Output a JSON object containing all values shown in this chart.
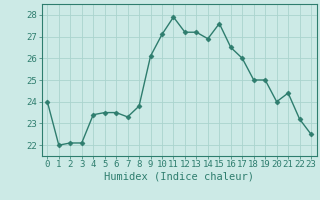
{
  "x": [
    0,
    1,
    2,
    3,
    4,
    5,
    6,
    7,
    8,
    9,
    10,
    11,
    12,
    13,
    14,
    15,
    16,
    17,
    18,
    19,
    20,
    21,
    22,
    23
  ],
  "y": [
    24.0,
    22.0,
    22.1,
    22.1,
    23.4,
    23.5,
    23.5,
    23.3,
    23.8,
    26.1,
    27.1,
    27.9,
    27.2,
    27.2,
    26.9,
    27.6,
    26.5,
    26.0,
    25.0,
    25.0,
    24.0,
    24.4,
    23.2,
    22.5
  ],
  "line_color": "#2e7d6e",
  "marker": "D",
  "marker_size": 2.5,
  "bg_color": "#cceae6",
  "grid_color": "#aad4ce",
  "xlabel": "Humidex (Indice chaleur)",
  "ylim": [
    21.5,
    28.5
  ],
  "yticks": [
    22,
    23,
    24,
    25,
    26,
    27,
    28
  ],
  "xlim": [
    -0.5,
    23.5
  ],
  "xticks": [
    0,
    1,
    2,
    3,
    4,
    5,
    6,
    7,
    8,
    9,
    10,
    11,
    12,
    13,
    14,
    15,
    16,
    17,
    18,
    19,
    20,
    21,
    22,
    23
  ],
  "tick_color": "#2e7d6e",
  "label_color": "#2e7d6e",
  "axis_color": "#2e7d6e",
  "font_size": 6.5,
  "xlabel_fontsize": 7.5,
  "linewidth": 1.0,
  "spine_linewidth": 0.8
}
